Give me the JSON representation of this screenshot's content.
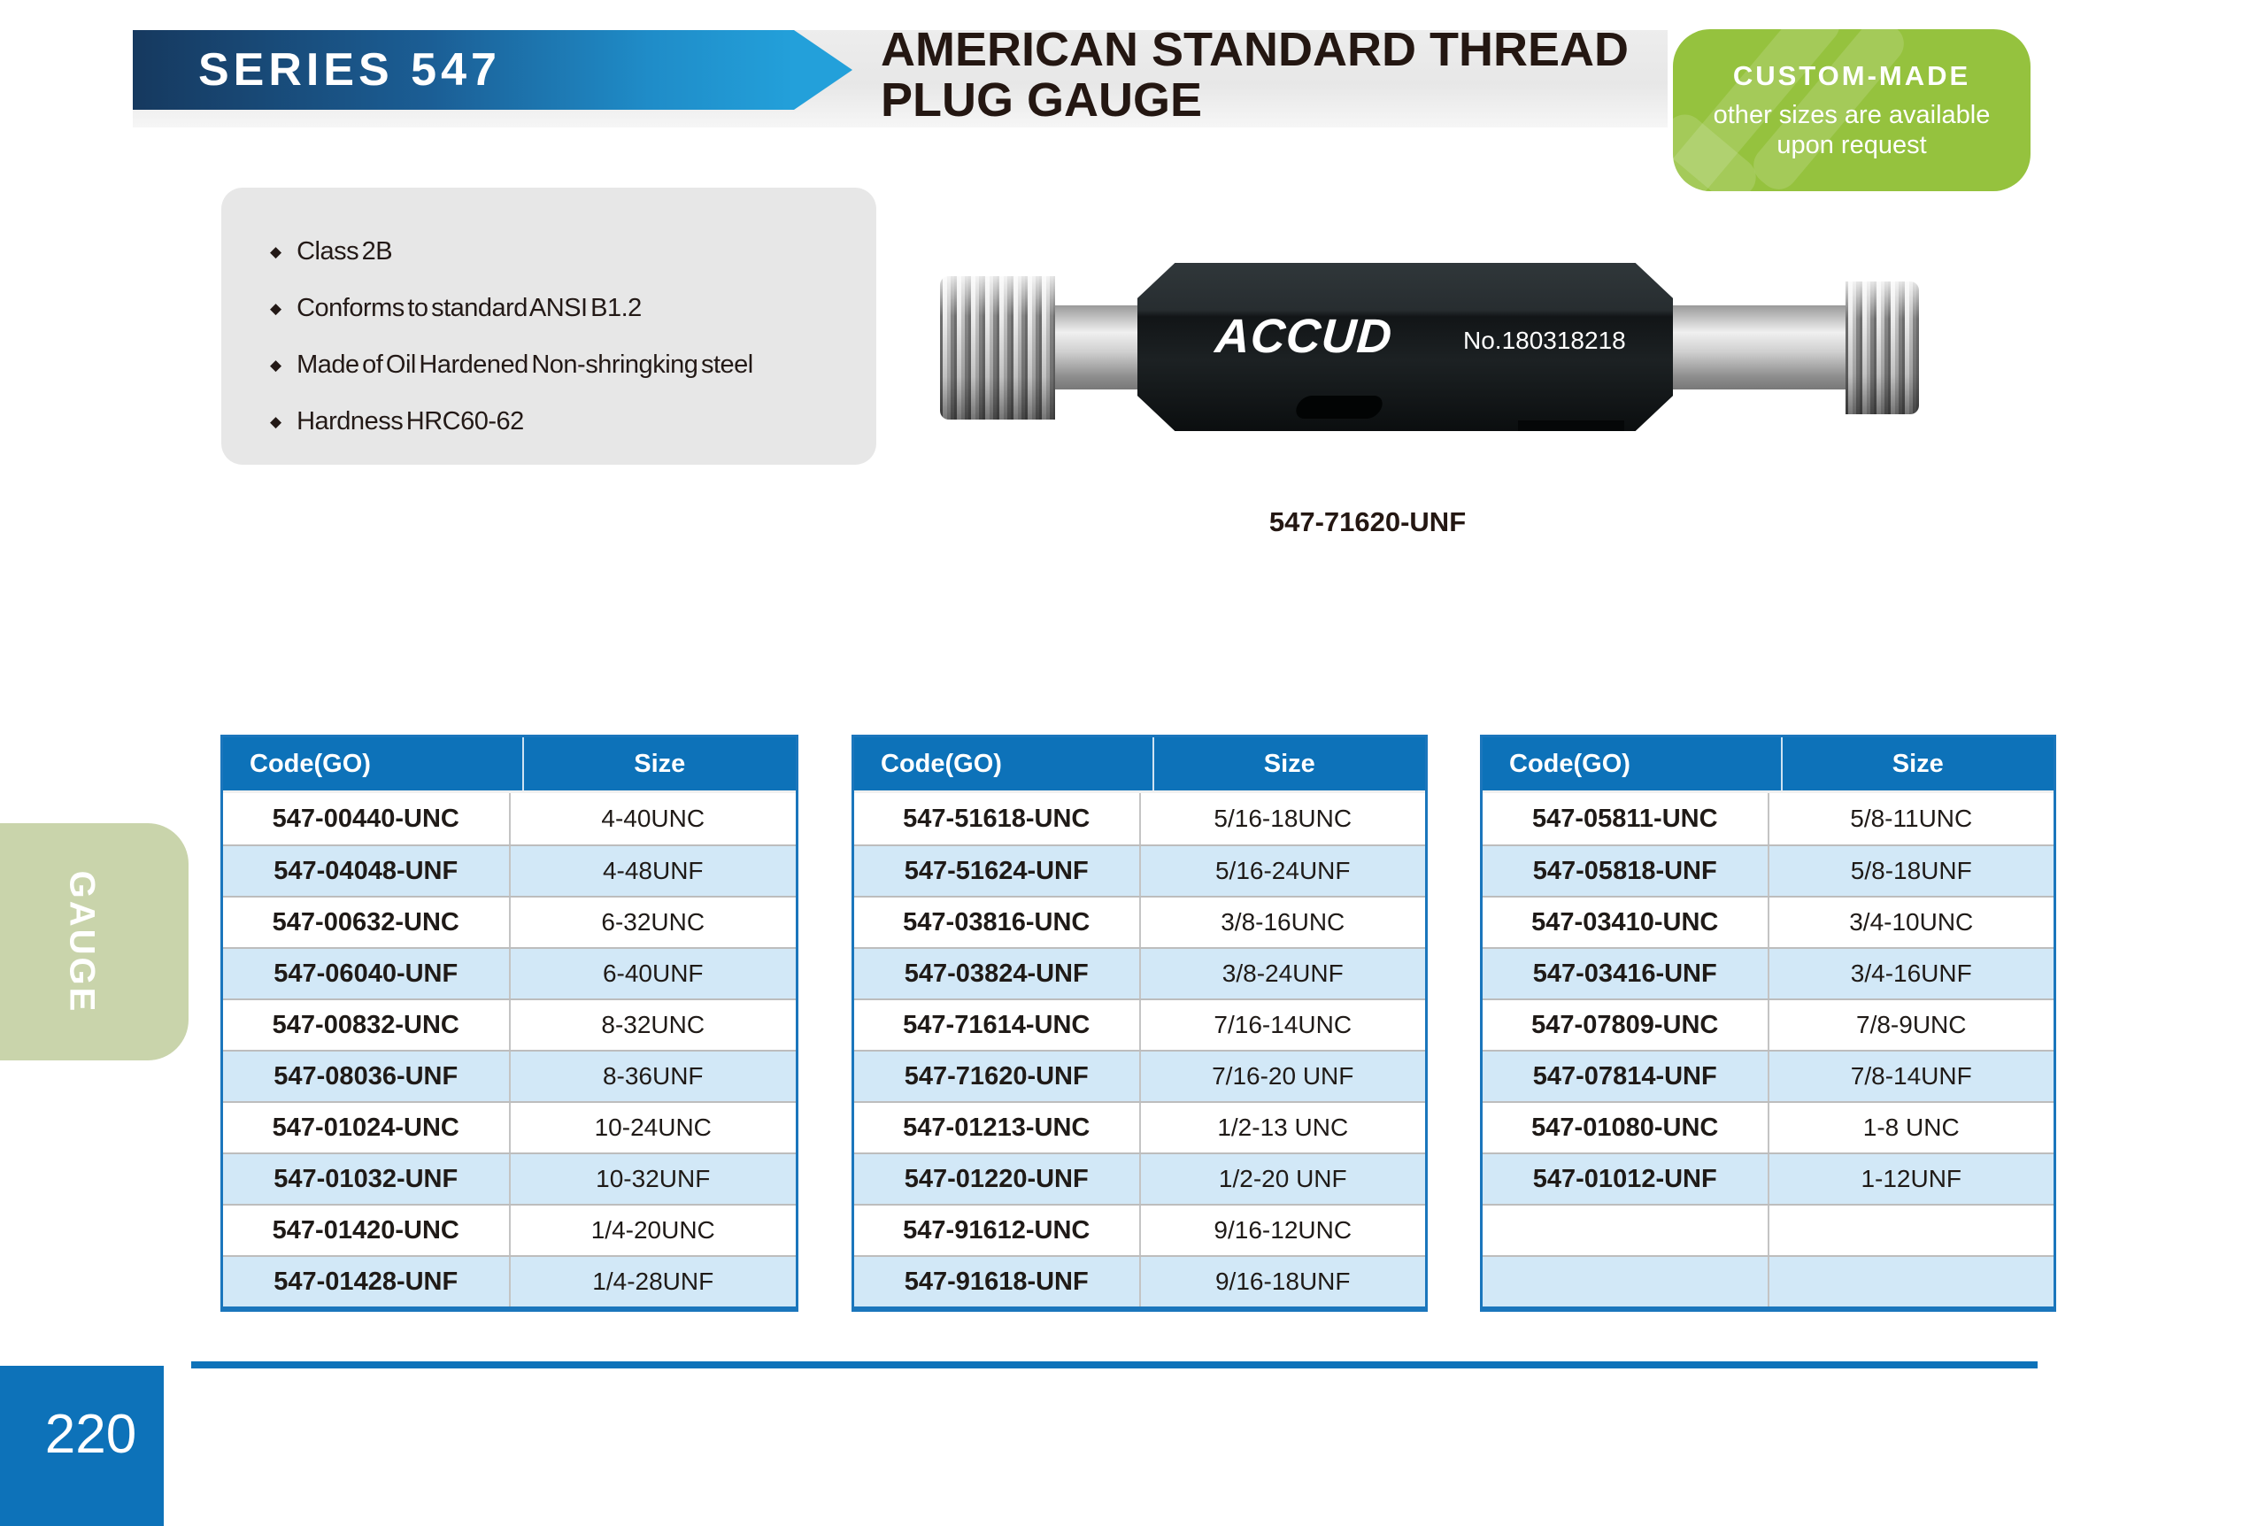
{
  "header": {
    "series": "SERIES 547",
    "title_line1": "AMERICAN STANDARD THREAD",
    "title_line2": "PLUG GAUGE"
  },
  "custom_badge": {
    "title": "CUSTOM-MADE",
    "line1": "other sizes are available",
    "line2": "upon request"
  },
  "features": [
    "Class 2B",
    "Conforms to standard ANSI B1.2",
    "Made of Oil Hardened Non-shringking steel",
    "Hardness HRC60-62"
  ],
  "product": {
    "brand": "ACCUD",
    "serial": "No.180318218",
    "caption": "547-71620-UNF"
  },
  "tables": [
    {
      "headers": [
        "Code(GO)",
        "Size"
      ],
      "rows": [
        [
          "547-00440-UNC",
          "4-40UNC"
        ],
        [
          "547-04048-UNF",
          "4-48UNF"
        ],
        [
          "547-00632-UNC",
          "6-32UNC"
        ],
        [
          "547-06040-UNF",
          "6-40UNF"
        ],
        [
          "547-00832-UNC",
          "8-32UNC"
        ],
        [
          "547-08036-UNF",
          "8-36UNF"
        ],
        [
          "547-01024-UNC",
          "10-24UNC"
        ],
        [
          "547-01032-UNF",
          "10-32UNF"
        ],
        [
          "547-01420-UNC",
          "1/4-20UNC"
        ],
        [
          "547-01428-UNF",
          "1/4-28UNF"
        ]
      ]
    },
    {
      "headers": [
        "Code(GO)",
        "Size"
      ],
      "rows": [
        [
          "547-51618-UNC",
          "5/16-18UNC"
        ],
        [
          "547-51624-UNF",
          "5/16-24UNF"
        ],
        [
          "547-03816-UNC",
          "3/8-16UNC"
        ],
        [
          "547-03824-UNF",
          "3/8-24UNF"
        ],
        [
          "547-71614-UNC",
          "7/16-14UNC"
        ],
        [
          "547-71620-UNF",
          "7/16-20 UNF"
        ],
        [
          "547-01213-UNC",
          "1/2-13 UNC"
        ],
        [
          "547-01220-UNF",
          "1/2-20 UNF"
        ],
        [
          "547-91612-UNC",
          "9/16-12UNC"
        ],
        [
          "547-91618-UNF",
          "9/16-18UNF"
        ]
      ]
    },
    {
      "headers": [
        "Code(GO)",
        "Size"
      ],
      "rows": [
        [
          "547-05811-UNC",
          "5/8-11UNC"
        ],
        [
          "547-05818-UNF",
          "5/8-18UNF"
        ],
        [
          "547-03410-UNC",
          "3/4-10UNC"
        ],
        [
          "547-03416-UNF",
          "3/4-16UNF"
        ],
        [
          "547-07809-UNC",
          "7/8-9UNC"
        ],
        [
          "547-07814-UNF",
          "7/8-14UNF"
        ],
        [
          "547-01080-UNC",
          "1-8 UNC"
        ],
        [
          "547-01012-UNF",
          "1-12UNF"
        ],
        [
          "",
          ""
        ],
        [
          "",
          ""
        ]
      ]
    }
  ],
  "sidebar": {
    "section_tab": "GAUGE"
  },
  "footer": {
    "page_number": "220"
  },
  "colors": {
    "accent-blue": "#0d72b9",
    "table-border": "#1b76bc",
    "row-alt": "#d2e8f7",
    "badge-green": "#95c23e",
    "tab-green": "#c9d4ab",
    "banner-end": "#23a0da"
  }
}
